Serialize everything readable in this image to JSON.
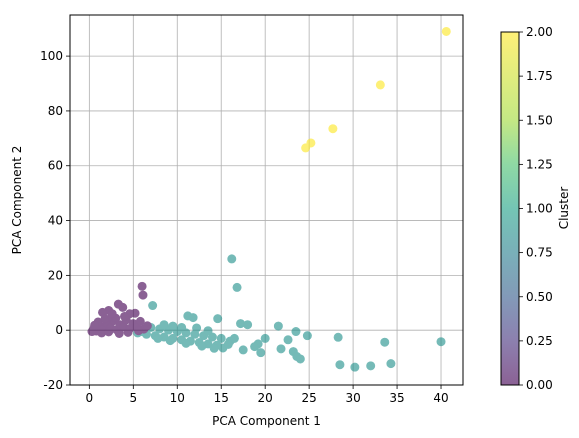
{
  "chart_data": {
    "type": "scatter",
    "xlabel": "PCA Component 1",
    "ylabel": "PCA Component 2",
    "xlim": [
      -2.2,
      42.5
    ],
    "ylim": [
      -20,
      115
    ],
    "xticks": [
      0,
      5,
      10,
      15,
      20,
      25,
      30,
      35,
      40
    ],
    "yticks": [
      -20,
      0,
      20,
      40,
      60,
      80,
      100
    ],
    "grid": true,
    "colorbar": {
      "label": "Cluster",
      "range": [
        0,
        2
      ],
      "ticks": [
        "0.00",
        "0.25",
        "0.50",
        "0.75",
        "1.00",
        "1.25",
        "1.50",
        "1.75",
        "2.00"
      ],
      "colormap": "viridis"
    },
    "clusters": [
      {
        "cluster": 0,
        "color": "#440154"
      },
      {
        "cluster": 1,
        "color": "#21918c"
      },
      {
        "cluster": 2,
        "color": "#fde725"
      }
    ],
    "points": {
      "cluster_0": [
        [
          6.0,
          16.0
        ],
        [
          6.1,
          12.8
        ],
        [
          3.3,
          9.5
        ],
        [
          3.8,
          8.3
        ],
        [
          2.2,
          7.2
        ],
        [
          1.5,
          6.5
        ],
        [
          4.6,
          6.0
        ],
        [
          5.2,
          6.2
        ],
        [
          0.5,
          0.5
        ],
        [
          0.8,
          -0.3
        ],
        [
          1.2,
          1.5
        ],
        [
          1.6,
          0.4
        ],
        [
          2.0,
          2.5
        ],
        [
          2.4,
          1.0
        ],
        [
          2.8,
          3.5
        ],
        [
          3.1,
          0.2
        ],
        [
          3.5,
          2.0
        ],
        [
          3.9,
          1.2
        ],
        [
          4.2,
          3.8
        ],
        [
          4.6,
          0.6
        ],
        [
          5.0,
          2.4
        ],
        [
          5.4,
          1.0
        ],
        [
          5.8,
          3.2
        ],
        [
          6.2,
          0.4
        ],
        [
          1.0,
          3.0
        ],
        [
          1.8,
          4.2
        ],
        [
          2.6,
          5.0
        ],
        [
          3.0,
          4.4
        ],
        [
          0.3,
          -0.5
        ],
        [
          1.4,
          -1.0
        ],
        [
          2.2,
          -0.6
        ],
        [
          3.4,
          -1.2
        ],
        [
          4.4,
          -0.8
        ],
        [
          5.6,
          -0.2
        ],
        [
          6.6,
          1.6
        ],
        [
          0.6,
          1.8
        ],
        [
          2.6,
          6.0
        ],
        [
          4.0,
          5.0
        ]
      ],
      "cluster_1": [
        [
          16.2,
          26.0
        ],
        [
          16.8,
          15.6
        ],
        [
          7.2,
          9.0
        ],
        [
          11.2,
          5.2
        ],
        [
          11.8,
          4.6
        ],
        [
          14.6,
          4.2
        ],
        [
          17.2,
          2.4
        ],
        [
          18.0,
          2.0
        ],
        [
          21.5,
          1.5
        ],
        [
          23.5,
          -0.5
        ],
        [
          24.8,
          -2.0
        ],
        [
          28.3,
          -2.6
        ],
        [
          33.6,
          -4.4
        ],
        [
          40.0,
          -4.2
        ],
        [
          19.2,
          -5.0
        ],
        [
          19.5,
          -8.2
        ],
        [
          21.8,
          -6.8
        ],
        [
          23.2,
          -7.8
        ],
        [
          23.6,
          -9.6
        ],
        [
          24.0,
          -10.5
        ],
        [
          22.6,
          -3.5
        ],
        [
          28.5,
          -12.6
        ],
        [
          30.2,
          -13.5
        ],
        [
          32.0,
          -13.0
        ],
        [
          34.3,
          -12.2
        ],
        [
          16.0,
          -4.0
        ],
        [
          17.5,
          -7.2
        ],
        [
          15.2,
          -6.5
        ],
        [
          18.8,
          -6.0
        ],
        [
          20.0,
          -3.0
        ],
        [
          6.5,
          -1.5
        ],
        [
          7.5,
          -2.0
        ],
        [
          8.5,
          -2.5
        ],
        [
          9.5,
          -3.0
        ],
        [
          10.5,
          -3.5
        ],
        [
          11.5,
          -4.0
        ],
        [
          12.5,
          -4.5
        ],
        [
          13.5,
          -5.0
        ],
        [
          14.5,
          -5.5
        ],
        [
          7.0,
          1.0
        ],
        [
          8.0,
          0.5
        ],
        [
          9.0,
          0.0
        ],
        [
          10.0,
          -0.5
        ],
        [
          11.0,
          -1.0
        ],
        [
          12.0,
          -1.5
        ],
        [
          13.0,
          -2.0
        ],
        [
          14.0,
          -2.5
        ],
        [
          15.0,
          -3.0
        ],
        [
          8.5,
          2.0
        ],
        [
          9.5,
          1.5
        ],
        [
          10.5,
          1.0
        ],
        [
          12.2,
          0.8
        ],
        [
          13.5,
          -0.2
        ],
        [
          6.0,
          -0.5
        ],
        [
          7.8,
          -3.0
        ],
        [
          9.2,
          -3.8
        ],
        [
          11.0,
          -4.8
        ],
        [
          12.8,
          -5.8
        ],
        [
          14.2,
          -6.6
        ],
        [
          15.8,
          -5.2
        ],
        [
          5.5,
          -1.0
        ],
        [
          16.5,
          -3.0
        ]
      ],
      "cluster_2": [
        [
          24.6,
          66.5
        ],
        [
          25.2,
          68.3
        ],
        [
          27.7,
          73.5
        ],
        [
          33.1,
          89.5
        ],
        [
          40.6,
          109.0
        ]
      ]
    }
  }
}
